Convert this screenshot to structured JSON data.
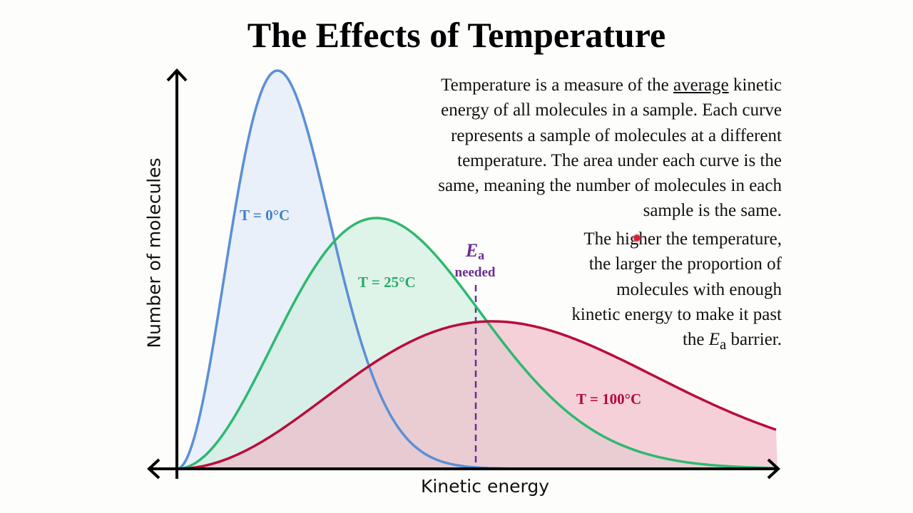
{
  "title": "The Effects of Temperature",
  "paragraph1": {
    "l1_a": "Temperature is a measure of the ",
    "l1_u": "average",
    "l1_b": " kinetic",
    "l2": "energy of all molecules in a sample.  Each curve",
    "l3": "represents a sample of molecules at a different",
    "l4": "temperature.  The area under each curve is the",
    "l5": "same, meaning the number of molecules in each",
    "l6": "sample is the same."
  },
  "paragraph2": {
    "l1": "The higher the temperature,",
    "l2": "the larger the proportion of",
    "l3": "molecules with enough",
    "l4": "kinetic energy to make it past",
    "l5_a": "the ",
    "l5_e": "E",
    "l5_sub": "a",
    "l5_b": " barrier."
  },
  "ea_marker": {
    "symbol": "E",
    "subscript": "a",
    "text": "needed"
  },
  "axes": {
    "x_label": "Kinetic energy",
    "y_label": "Number of molecules"
  },
  "curves": [
    {
      "label": "T = 0°C",
      "stroke": "#5b8fd6",
      "fill": "#dce7f8"
    },
    {
      "label": "T = 25°C",
      "stroke": "#2fb870",
      "fill": "#ccefdc"
    },
    {
      "label": "T = 100°C",
      "stroke": "#b80d3c",
      "fill": "#f0b3c3"
    }
  ],
  "colors": {
    "ea_line": "#6a2c93",
    "axis": "#000000"
  }
}
